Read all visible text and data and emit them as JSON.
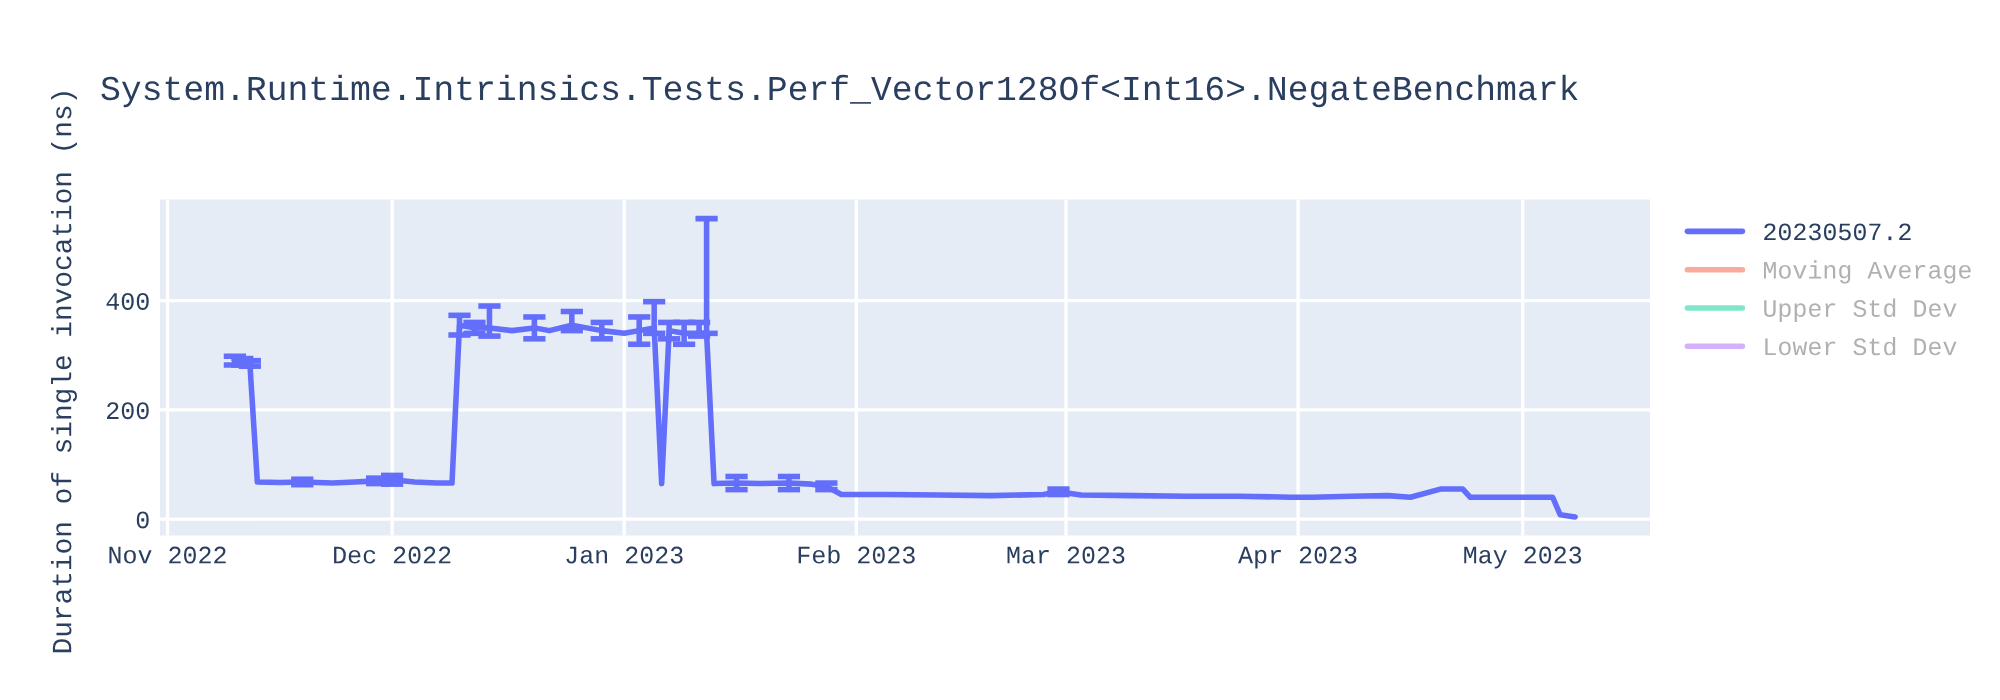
{
  "chart_data": {
    "type": "line",
    "title": "System.Runtime.Intrinsics.Tests.Perf_Vector128Of<Int16>.NegateBenchmark",
    "ylabel": "Duration of single invocation (ns)",
    "xlim": [
      "2022-10-31",
      "2023-05-18"
    ],
    "xticks": [
      {
        "value": "2022-11-01",
        "label": "Nov 2022"
      },
      {
        "value": "2022-12-01",
        "label": "Dec 2022"
      },
      {
        "value": "2023-01-01",
        "label": "Jan 2023"
      },
      {
        "value": "2023-02-01",
        "label": "Feb 2023"
      },
      {
        "value": "2023-03-01",
        "label": "Mar 2023"
      },
      {
        "value": "2023-04-01",
        "label": "Apr 2023"
      },
      {
        "value": "2023-05-01",
        "label": "May 2023"
      }
    ],
    "ylim": [
      -30,
      585
    ],
    "yticks": [
      0,
      200,
      400
    ],
    "grid": true,
    "legend": "right",
    "series": [
      {
        "name": "20230507.2",
        "color": "#636efa",
        "x": [
          "2022-11-10",
          "2022-11-11",
          "2022-11-12",
          "2022-11-13",
          "2022-11-16",
          "2022-11-19",
          "2022-11-23",
          "2022-11-26",
          "2022-11-29",
          "2022-12-01",
          "2022-12-04",
          "2022-12-07",
          "2022-12-09",
          "2022-12-10",
          "2022-12-12",
          "2022-12-14",
          "2022-12-17",
          "2022-12-20",
          "2022-12-22",
          "2022-12-25",
          "2022-12-27",
          "2022-12-29",
          "2023-01-01",
          "2023-01-03",
          "2023-01-05",
          "2023-01-06",
          "2023-01-07",
          "2023-01-09",
          "2023-01-11",
          "2023-01-12",
          "2023-01-13",
          "2023-01-16",
          "2023-01-19",
          "2023-01-23",
          "2023-01-26",
          "2023-01-28",
          "2023-01-30",
          "2023-02-05",
          "2023-02-12",
          "2023-02-19",
          "2023-02-26",
          "2023-02-28",
          "2023-03-03",
          "2023-03-10",
          "2023-03-17",
          "2023-03-24",
          "2023-03-31",
          "2023-04-03",
          "2023-04-08",
          "2023-04-13",
          "2023-04-16",
          "2023-04-20",
          "2023-04-23",
          "2023-04-24",
          "2023-05-01",
          "2023-05-05",
          "2023-05-06",
          "2023-05-08"
        ],
        "values": [
          290,
          288,
          285,
          68,
          67,
          68,
          66,
          68,
          70,
          72,
          68,
          66,
          66,
          355,
          350,
          350,
          345,
          350,
          345,
          355,
          350,
          345,
          340,
          345,
          350,
          65,
          345,
          340,
          340,
          340,
          65,
          66,
          65,
          66,
          64,
          60,
          45,
          45,
          44,
          43,
          45,
          50,
          44,
          43,
          42,
          42,
          40,
          40,
          42,
          43,
          40,
          55,
          55,
          40,
          40,
          40,
          8,
          4
        ],
        "errors": [
          8,
          6,
          5,
          null,
          null,
          5,
          null,
          null,
          5,
          8,
          null,
          null,
          null,
          18,
          10,
          [
            335,
            390
          ],
          null,
          20,
          null,
          [
            345,
            380
          ],
          null,
          15,
          null,
          25,
          [
            340,
            398
          ],
          null,
          15,
          20,
          [
            335,
            360
          ],
          [
            340,
            550
          ],
          null,
          12,
          null,
          12,
          null,
          6,
          null,
          null,
          null,
          null,
          null,
          5,
          null,
          null,
          null,
          null,
          null,
          null,
          null,
          null,
          null,
          null,
          null,
          null,
          null,
          null,
          null,
          null
        ]
      },
      {
        "name": "Moving Average",
        "color": "#f9aa9d"
      },
      {
        "name": "Upper Std Dev",
        "color": "#80e6cb"
      },
      {
        "name": "Lower Std Dev",
        "color": "#d5b1fd"
      }
    ]
  }
}
